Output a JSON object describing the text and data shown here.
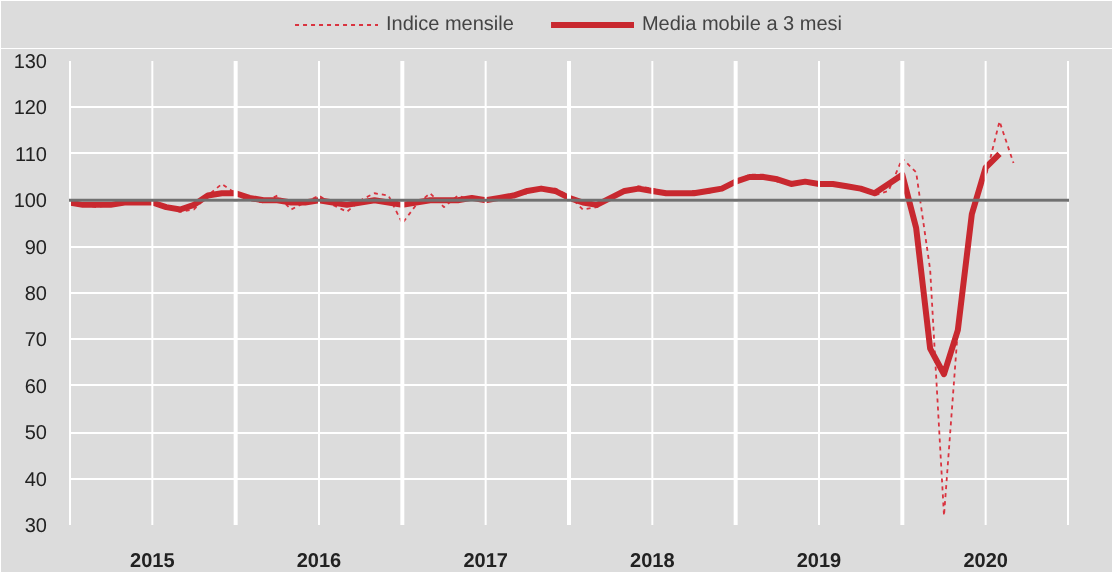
{
  "chart_data": {
    "type": "line",
    "xlim": [
      2015,
      2021
    ],
    "xticks": [
      {
        "value": 2015,
        "label": null
      },
      {
        "value": 2015.5,
        "label": "2015"
      },
      {
        "value": 2016,
        "label": null
      },
      {
        "value": 2016.5,
        "label": "2016"
      },
      {
        "value": 2017,
        "label": null
      },
      {
        "value": 2017.5,
        "label": "2017"
      },
      {
        "value": 2018,
        "label": null
      },
      {
        "value": 2018.5,
        "label": "2018"
      },
      {
        "value": 2019,
        "label": null
      },
      {
        "value": 2019.5,
        "label": "2019"
      },
      {
        "value": 2020,
        "label": null
      },
      {
        "value": 2020.5,
        "label": "2020"
      },
      {
        "value": 2021,
        "label": null
      }
    ],
    "ylim": [
      30,
      130
    ],
    "yticks": [
      30,
      40,
      50,
      60,
      70,
      80,
      90,
      100,
      110,
      120,
      130
    ],
    "grid": true,
    "legend": "top",
    "marker": "none",
    "ref_lines": [
      {
        "axis": "y",
        "value": 100,
        "color": "#707070"
      }
    ],
    "series": [
      {
        "name": "Indice mensile",
        "color": "#d9333f",
        "line_style": "dashed",
        "x": [
          2015.0,
          2015.083,
          2015.167,
          2015.25,
          2015.333,
          2015.417,
          2015.5,
          2015.583,
          2015.667,
          2015.75,
          2015.833,
          2015.917,
          2016.0,
          2016.083,
          2016.167,
          2016.25,
          2016.333,
          2016.417,
          2016.5,
          2016.583,
          2016.667,
          2016.75,
          2016.833,
          2016.917,
          2017.0,
          2017.083,
          2017.167,
          2017.25,
          2017.333,
          2017.417,
          2017.5,
          2017.583,
          2017.667,
          2017.75,
          2017.833,
          2017.917,
          2018.0,
          2018.083,
          2018.167,
          2018.25,
          2018.333,
          2018.417,
          2018.5,
          2018.583,
          2018.667,
          2018.75,
          2018.833,
          2018.917,
          2019.0,
          2019.083,
          2019.167,
          2019.25,
          2019.333,
          2019.417,
          2019.5,
          2019.583,
          2019.667,
          2019.75,
          2019.833,
          2019.917,
          2020.0,
          2020.083,
          2020.167,
          2020.25,
          2020.333,
          2020.417,
          2020.5,
          2020.583,
          2020.667
        ],
        "values": [
          100,
          99,
          98.5,
          99,
          99.5,
          100,
          99.5,
          98.5,
          97.5,
          98,
          101,
          103.5,
          101.5,
          100,
          99.5,
          101,
          98,
          99.5,
          101,
          99,
          97.5,
          100,
          101.5,
          101,
          95,
          99,
          101.5,
          98.5,
          101,
          100,
          100.5,
          100,
          101,
          101.5,
          102.5,
          102.5,
          101,
          98,
          98.5,
          100.5,
          102,
          103,
          102.5,
          101.5,
          101.5,
          102,
          101.5,
          102.5,
          104,
          105.5,
          105.5,
          104,
          103.5,
          104,
          103.5,
          103.5,
          103,
          102.5,
          101,
          102,
          109,
          106,
          85,
          32,
          72,
          98,
          105,
          117,
          108
        ]
      },
      {
        "name": "Media mobile a 3 mesi",
        "color": "#c8282f",
        "line_style": "solid",
        "x": [
          2015.0,
          2015.083,
          2015.167,
          2015.25,
          2015.333,
          2015.417,
          2015.5,
          2015.583,
          2015.667,
          2015.75,
          2015.833,
          2015.917,
          2016.0,
          2016.083,
          2016.167,
          2016.25,
          2016.333,
          2016.417,
          2016.5,
          2016.583,
          2016.667,
          2016.75,
          2016.833,
          2016.917,
          2017.0,
          2017.083,
          2017.167,
          2017.25,
          2017.333,
          2017.417,
          2017.5,
          2017.583,
          2017.667,
          2017.75,
          2017.833,
          2017.917,
          2018.0,
          2018.083,
          2018.167,
          2018.25,
          2018.333,
          2018.417,
          2018.5,
          2018.583,
          2018.667,
          2018.75,
          2018.833,
          2018.917,
          2019.0,
          2019.083,
          2019.167,
          2019.25,
          2019.333,
          2019.417,
          2019.5,
          2019.583,
          2019.667,
          2019.75,
          2019.833,
          2019.917,
          2020.0,
          2020.083,
          2020.167,
          2020.25,
          2020.333,
          2020.417,
          2020.5,
          2020.583
        ],
        "values": [
          99.5,
          99,
          99,
          99,
          99.5,
          99.5,
          99.5,
          98.5,
          98,
          99,
          101,
          101.5,
          101.5,
          100.5,
          100,
          100,
          99.5,
          99.5,
          100,
          99.5,
          99,
          99.5,
          100,
          99.5,
          99,
          99.5,
          100,
          100,
          100,
          100.5,
          100,
          100.5,
          101,
          102,
          102.5,
          102,
          100.5,
          99.5,
          99,
          100.5,
          102,
          102.5,
          102,
          101.5,
          101.5,
          101.5,
          102,
          102.5,
          104,
          105,
          105,
          104.5,
          103.5,
          104,
          103.5,
          103.5,
          103,
          102.5,
          101.5,
          103.5,
          105.5,
          94,
          68,
          62.5,
          72,
          97,
          107,
          110
        ]
      }
    ]
  }
}
